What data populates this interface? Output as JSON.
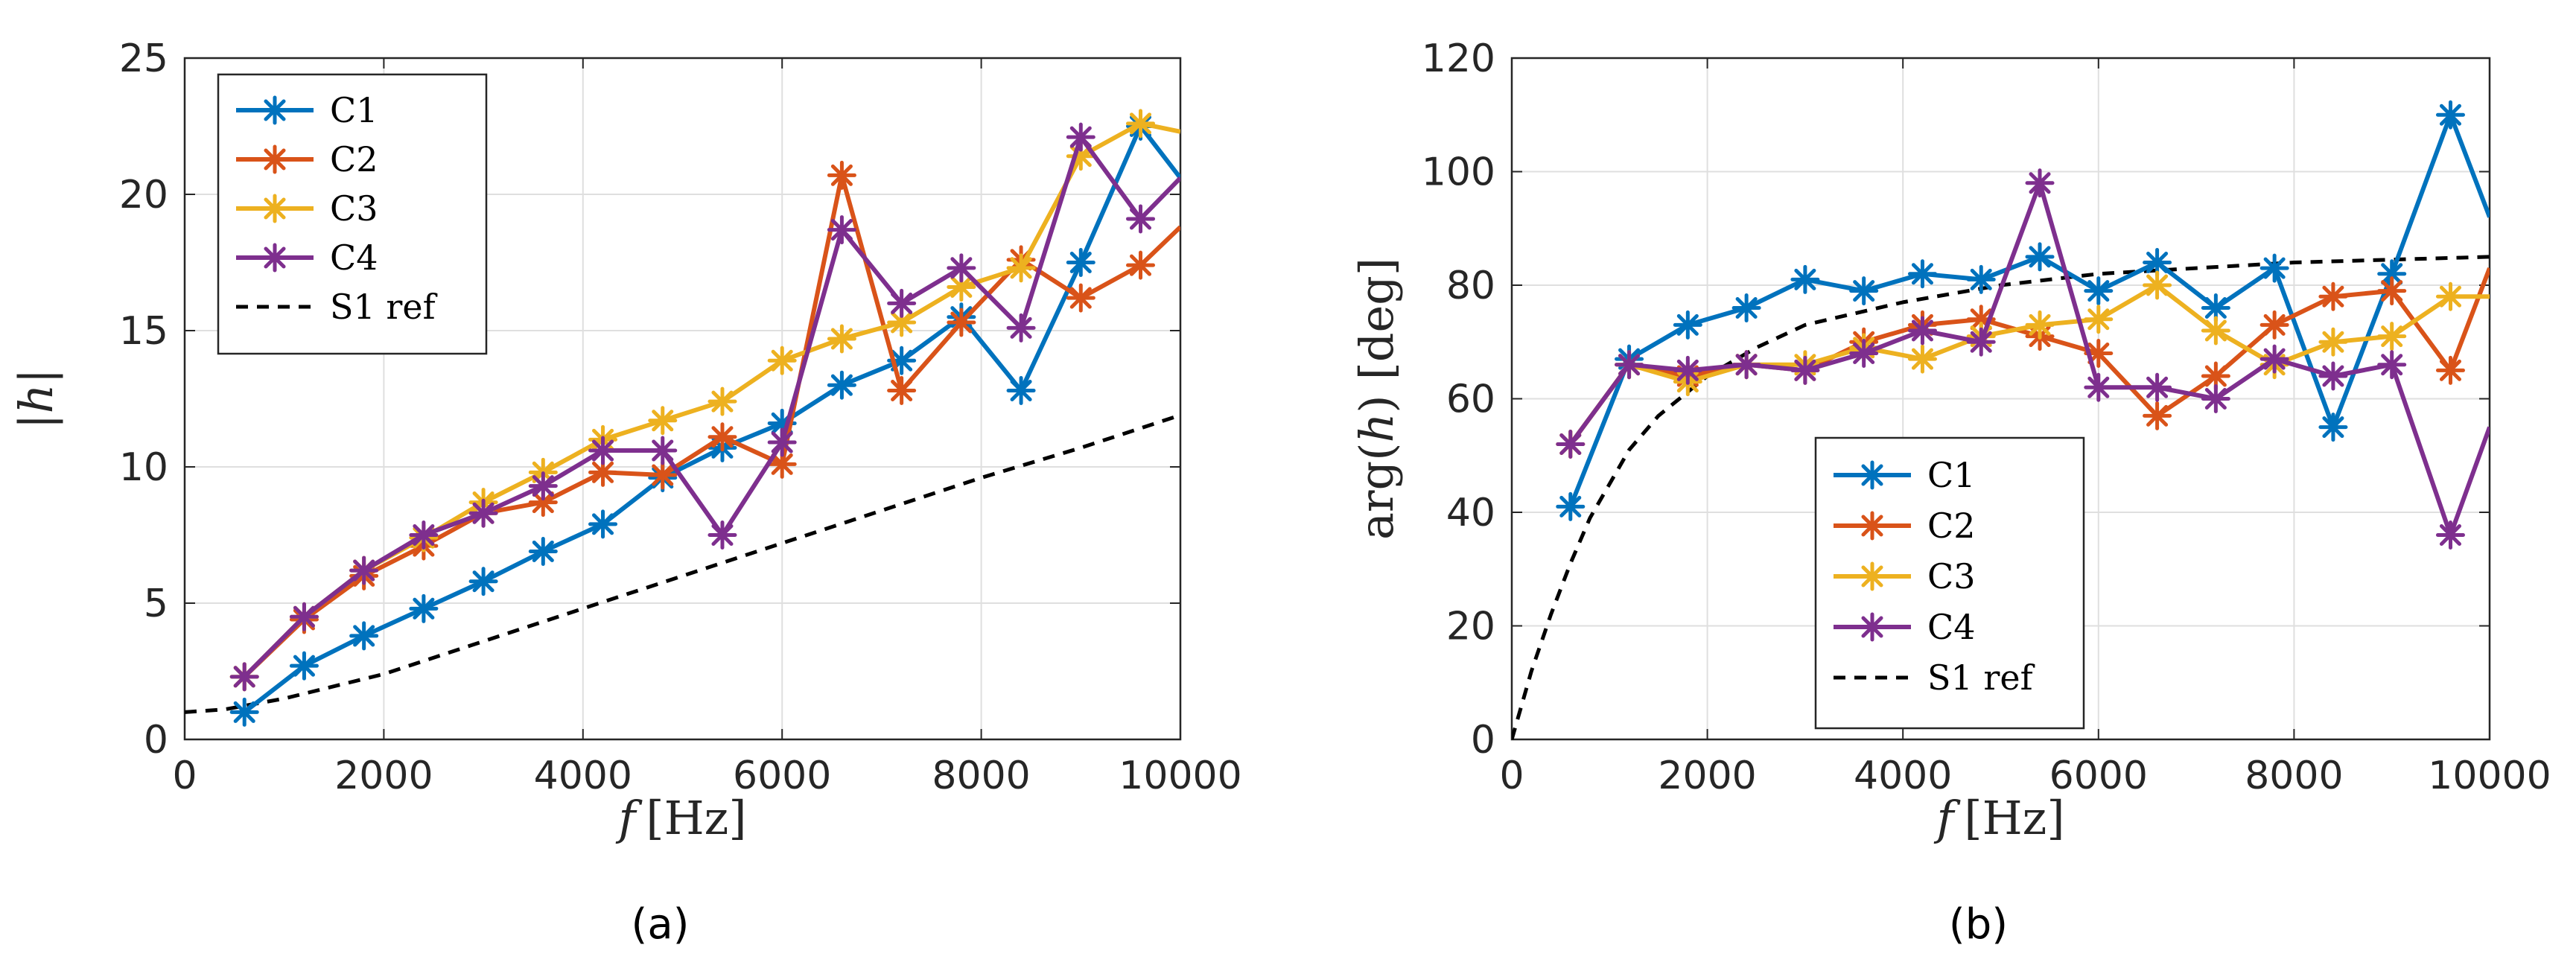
{
  "chart_data": [
    {
      "type": "line",
      "panel": "a",
      "caption": "(a)",
      "xlabel_var": "f",
      "xlabel_unit": "[Hz]",
      "ylabel": "|h|",
      "xlim": [
        0,
        10000
      ],
      "ylim": [
        0,
        25
      ],
      "xticks": [
        0,
        2000,
        4000,
        6000,
        8000,
        10000
      ],
      "yticks": [
        0,
        5,
        10,
        15,
        20,
        25
      ],
      "grid": true,
      "legend_position": "top-left",
      "x": [
        600,
        1200,
        1800,
        2400,
        3000,
        3600,
        4200,
        4800,
        5400,
        6000,
        6600,
        7200,
        7800,
        8400,
        9000,
        9600,
        10000
      ],
      "series": [
        {
          "name": "C1",
          "color": "#0072BD",
          "marker": true,
          "values": [
            1.0,
            2.7,
            3.8,
            4.8,
            5.8,
            6.9,
            7.9,
            9.6,
            10.7,
            11.6,
            13.0,
            13.9,
            15.5,
            12.8,
            17.5,
            22.5,
            20.6
          ]
        },
        {
          "name": "C2",
          "color": "#D95319",
          "marker": true,
          "values": [
            2.3,
            4.4,
            6.0,
            7.1,
            8.3,
            8.7,
            9.8,
            9.7,
            11.1,
            10.1,
            20.7,
            12.8,
            15.3,
            17.6,
            16.2,
            17.4,
            18.8
          ]
        },
        {
          "name": "C3",
          "color": "#EDB120",
          "marker": true,
          "values": [
            2.3,
            4.5,
            6.2,
            7.4,
            8.7,
            9.8,
            11.0,
            11.7,
            12.4,
            13.9,
            14.7,
            15.3,
            16.6,
            17.3,
            21.4,
            22.6,
            22.3
          ]
        },
        {
          "name": "C4",
          "color": "#7E2F8E",
          "marker": true,
          "values": [
            2.3,
            4.5,
            6.2,
            7.5,
            8.3,
            9.3,
            10.6,
            10.6,
            7.5,
            10.9,
            18.7,
            16.0,
            17.3,
            15.1,
            22.1,
            19.1,
            20.6
          ]
        },
        {
          "name": "S1 ref",
          "color": "#000000",
          "marker": false,
          "dashed": true,
          "x": [
            0,
            400,
            1000,
            2000,
            3000,
            4000,
            5000,
            6000,
            7000,
            8000,
            9000,
            10000
          ],
          "values": [
            1.0,
            1.1,
            1.5,
            2.4,
            3.6,
            4.8,
            6.0,
            7.2,
            8.4,
            9.6,
            10.7,
            11.9
          ]
        }
      ]
    },
    {
      "type": "line",
      "panel": "b",
      "caption": "(b)",
      "xlabel_var": "f",
      "xlabel_unit": "[Hz]",
      "ylabel_fn": "arg",
      "ylabel_arg": "h",
      "ylabel_unit": "[deg]",
      "xlim": [
        0,
        10000
      ],
      "ylim": [
        0,
        120
      ],
      "xticks": [
        0,
        2000,
        4000,
        6000,
        8000,
        10000
      ],
      "yticks": [
        0,
        20,
        40,
        60,
        80,
        100,
        120
      ],
      "grid": true,
      "legend_position": "bottom-center",
      "x": [
        600,
        1200,
        1800,
        2400,
        3000,
        3600,
        4200,
        4800,
        5400,
        6000,
        6600,
        7200,
        7800,
        8400,
        9000,
        9600,
        10000
      ],
      "series": [
        {
          "name": "C1",
          "color": "#0072BD",
          "marker": true,
          "values": [
            41,
            67,
            73,
            76,
            81,
            79,
            82,
            81,
            85,
            79,
            84,
            76,
            83,
            55,
            82,
            110,
            92
          ]
        },
        {
          "name": "C2",
          "color": "#D95319",
          "marker": true,
          "values": [
            52,
            66,
            64,
            66,
            65,
            70,
            73,
            74,
            71,
            68,
            57,
            64,
            73,
            78,
            79,
            65,
            83
          ]
        },
        {
          "name": "C3",
          "color": "#EDB120",
          "marker": true,
          "values": [
            52,
            66,
            63,
            66,
            66,
            69,
            67,
            71,
            73,
            74,
            80,
            72,
            66,
            70,
            71,
            78,
            78
          ]
        },
        {
          "name": "C4",
          "color": "#7E2F8E",
          "marker": true,
          "values": [
            52,
            66,
            65,
            66,
            65,
            68,
            72,
            70,
            98,
            62,
            62,
            60,
            67,
            64,
            66,
            36,
            55
          ]
        },
        {
          "name": "S1 ref",
          "color": "#000000",
          "marker": false,
          "dashed": true,
          "x": [
            0,
            200,
            400,
            600,
            800,
            1000,
            1200,
            1500,
            2000,
            2500,
            3000,
            3500,
            4000,
            5000,
            6000,
            7000,
            8000,
            9000,
            10000
          ],
          "values": [
            0,
            12,
            22,
            31,
            39,
            45,
            51,
            57,
            64,
            69,
            73,
            75,
            77,
            80,
            82,
            83,
            84,
            84.5,
            85
          ]
        }
      ]
    }
  ]
}
